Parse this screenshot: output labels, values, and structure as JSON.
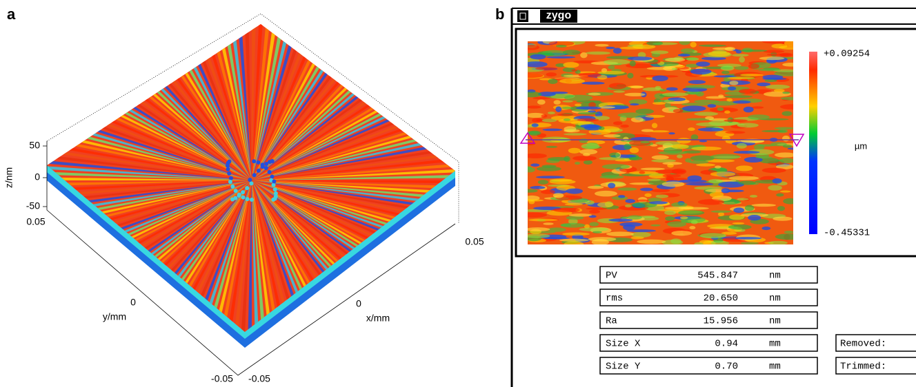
{
  "panel_a": {
    "label": "a",
    "z_axis": {
      "label": "z/nm",
      "ticks": [
        "50",
        "0",
        "-50"
      ]
    },
    "y_axis": {
      "label": "y/mm",
      "ticks": [
        "0.05",
        "0",
        "-0.05"
      ]
    },
    "x_axis": {
      "label": "x/mm",
      "ticks": [
        "-0.05",
        "0",
        "0.05"
      ]
    }
  },
  "panel_b": {
    "label": "b",
    "window_title": "zygo",
    "colorbar": {
      "max": "+0.09254",
      "unit": "µm",
      "min": "-0.45331"
    },
    "results": [
      {
        "name": "PV",
        "value": "545.847",
        "unit": "nm"
      },
      {
        "name": "rms",
        "value": "20.650",
        "unit": "nm"
      },
      {
        "name": "Ra",
        "value": "15.956",
        "unit": "nm"
      },
      {
        "name": "Size X",
        "value": "0.94",
        "unit": "mm"
      },
      {
        "name": "Size Y",
        "value": "0.70",
        "unit": "mm"
      }
    ],
    "side_labels": [
      "Removed:",
      "Trimmed:"
    ]
  }
}
